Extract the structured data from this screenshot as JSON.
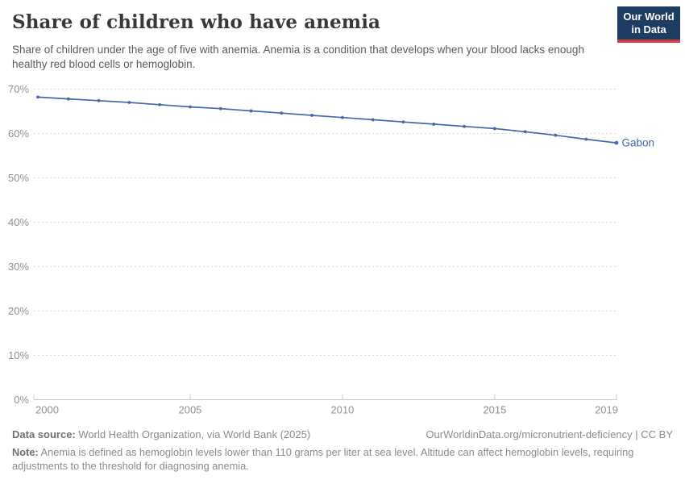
{
  "header": {
    "title": "Share of children who have anemia",
    "subtitle": "Share of children under the age of five with anemia. Anemia is a condition that develops when your blood lacks enough healthy red blood cells or hemoglobin.",
    "logo": {
      "line1": "Our World",
      "line2": "in Data",
      "bg_color": "#1d3d63",
      "accent_color": "#d43a3d"
    }
  },
  "chart_data": {
    "type": "line",
    "title": "Share of children who have anemia",
    "xlabel": "",
    "ylabel": "",
    "xlim": [
      2000,
      2019
    ],
    "ylim": [
      0,
      70
    ],
    "grid": "horizontal-dashed",
    "legend_position": "end-of-line-label",
    "x_ticks": [
      2000,
      2005,
      2010,
      2015,
      2019
    ],
    "y_ticks": [
      0,
      10,
      20,
      30,
      40,
      50,
      60,
      70
    ],
    "y_tick_suffix": "%",
    "x": [
      2000,
      2001,
      2002,
      2003,
      2004,
      2005,
      2006,
      2007,
      2008,
      2009,
      2010,
      2011,
      2012,
      2013,
      2014,
      2015,
      2016,
      2017,
      2018,
      2019
    ],
    "series": [
      {
        "name": "Gabon",
        "color": "#4468a8",
        "values": [
          68.2,
          67.8,
          67.4,
          67.0,
          66.5,
          66.0,
          65.6,
          65.1,
          64.6,
          64.1,
          63.6,
          63.1,
          62.6,
          62.1,
          61.6,
          61.1,
          60.4,
          59.6,
          58.7,
          57.9
        ]
      }
    ],
    "colors": {
      "gridline": "#d8d8d8",
      "axis_line": "#c8c8c8",
      "tick_label": "#929292"
    }
  },
  "footer": {
    "source_label": "Data source:",
    "source_text": " World Health Organization, via World Bank (2025)",
    "link_text": "OurWorldinData.org/micronutrient-deficiency | CC BY",
    "note_label": "Note:",
    "note_text": " Anemia is defined as hemoglobin levels lower than 110 grams per liter at sea level. Altitude can affect hemoglobin levels, requiring adjustments to the threshold for diagnosing anemia."
  }
}
